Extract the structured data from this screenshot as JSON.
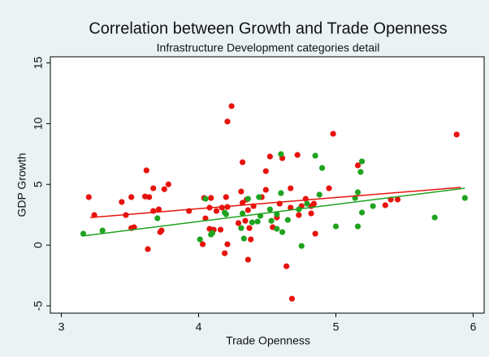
{
  "chart_data": {
    "type": "scatter",
    "title": "Correlation between Growth and Trade Openness",
    "subtitle": "Infrastructure Development categories detail",
    "x_label": "Trade Openness",
    "y_label": "GDP Growth",
    "xlim": [
      2.92,
      6.08
    ],
    "ylim": [
      -5.6,
      15.5
    ],
    "xticks": [
      3,
      4,
      5,
      6
    ],
    "yticks": [
      -5,
      0,
      5,
      10,
      15
    ],
    "series": [
      {
        "type": "scatter",
        "color": "#e8120c",
        "x": [
          3.2,
          3.24,
          3.44,
          3.47,
          3.51,
          3.51,
          3.53,
          3.62,
          3.61,
          3.64,
          3.63,
          3.67,
          3.67,
          3.71,
          3.73,
          3.72,
          3.75,
          3.78,
          3.93,
          4.04,
          4.03,
          4.05,
          4.08,
          4.08,
          4.09,
          4.11,
          4.13,
          4.16,
          4.17,
          4.19,
          4.2,
          4.21,
          4.21,
          4.24,
          4.21,
          4.29,
          4.31,
          4.32,
          4.32,
          4.35,
          4.34,
          4.36,
          4.36,
          4.37,
          4.38,
          4.4,
          4.46,
          4.49,
          4.49,
          4.52,
          4.54,
          4.57,
          4.59,
          4.61,
          4.64,
          4.67,
          4.67,
          4.68,
          4.72,
          4.73,
          4.75,
          4.78,
          4.82,
          4.82,
          4.84,
          4.85,
          4.95,
          4.98,
          5.16,
          5.36,
          5.4,
          5.45,
          5.88
        ],
        "values": [
          3.95,
          2.47,
          3.55,
          2.47,
          3.95,
          1.4,
          1.47,
          6.15,
          4.0,
          3.95,
          -0.33,
          2.81,
          4.68,
          2.94,
          1.2,
          1.07,
          4.6,
          5.0,
          2.81,
          3.88,
          0.07,
          2.2,
          1.34,
          3.08,
          3.88,
          1.27,
          2.81,
          1.27,
          3.08,
          -0.67,
          3.95,
          0.07,
          10.17,
          11.44,
          3.14,
          1.81,
          4.41,
          6.82,
          3.48,
          3.75,
          2.0,
          2.88,
          -1.2,
          1.4,
          0.47,
          3.21,
          3.95,
          4.55,
          6.09,
          7.29,
          1.47,
          2.27,
          3.41,
          7.16,
          -1.74,
          4.68,
          3.08,
          -4.41,
          7.42,
          2.47,
          3.21,
          3.81,
          3.21,
          2.61,
          3.41,
          0.94,
          4.68,
          9.16,
          6.56,
          3.28,
          3.75,
          3.75,
          9.1
        ]
      },
      {
        "type": "scatter",
        "color": "#1fa31f",
        "x": [
          3.16,
          3.3,
          3.7,
          4.01,
          4.05,
          4.09,
          4.1,
          4.19,
          4.2,
          4.31,
          4.32,
          4.33,
          4.36,
          4.39,
          4.43,
          4.45,
          4.44,
          4.52,
          4.53,
          4.57,
          4.57,
          4.6,
          4.6,
          4.61,
          4.65,
          4.73,
          4.75,
          4.79,
          4.85,
          4.88,
          4.9,
          5.0,
          5.14,
          5.16,
          5.16,
          5.18,
          5.19,
          5.19,
          5.27,
          5.72,
          5.94
        ],
        "values": [
          0.94,
          1.2,
          2.21,
          0.47,
          3.81,
          0.87,
          1.0,
          2.68,
          2.54,
          1.4,
          2.61,
          0.54,
          3.81,
          1.87,
          1.94,
          2.41,
          3.95,
          2.94,
          2.0,
          2.54,
          1.34,
          7.49,
          4.28,
          1.07,
          2.07,
          2.94,
          -0.07,
          3.41,
          7.36,
          4.15,
          6.35,
          1.54,
          3.88,
          1.54,
          4.35,
          6.02,
          6.89,
          2.68,
          3.21,
          2.27,
          3.88
        ]
      },
      {
        "type": "line",
        "color": "#e8120c",
        "x": [
          3.21,
          5.91
        ],
        "values": [
          2.27,
          4.75
        ]
      },
      {
        "type": "line",
        "color": "#1fa31f",
        "x": [
          3.15,
          5.94
        ],
        "values": [
          0.74,
          4.68
        ]
      }
    ]
  }
}
